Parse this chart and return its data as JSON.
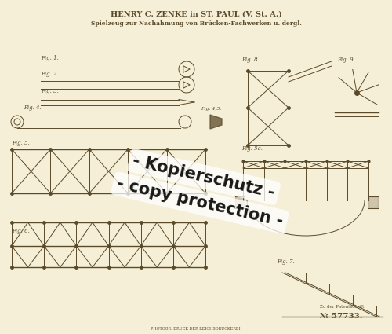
{
  "bg_color": "#f5efd8",
  "title_line1": "HENRY C. ZENKE in ST. PAUL (V. St. A.)",
  "title_line2": "Spielzeug zur Nachahmung von Brücken-Fachwerken u. dergl.",
  "watermark_line1": "- Kopierschutz -",
  "watermark_line2": "- copy protection -",
  "patent_number": "№ 57733.",
  "patent_label": "Zu der Patentschrift",
  "bottom_text": "PHOTOGR. DRUCK DER REICHSDRUCKEREI.",
  "line_color": "#5a4a2a",
  "watermark_color": "#2a2a2a",
  "fig_label_color": "#5a4a2a"
}
